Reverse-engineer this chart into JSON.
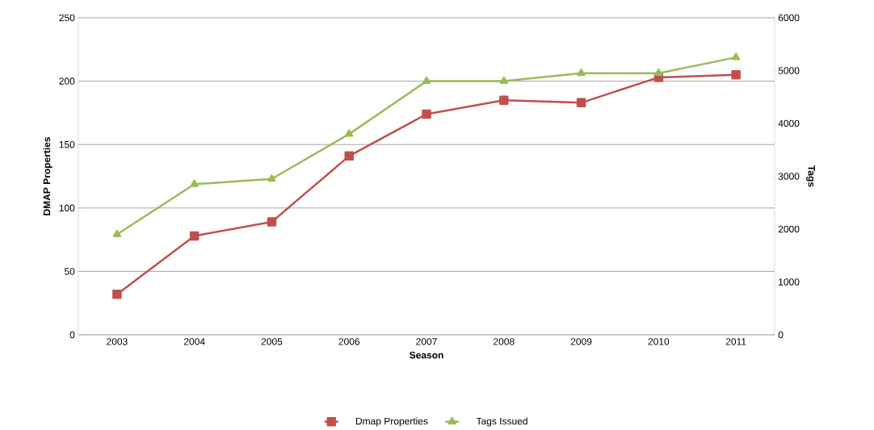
{
  "chart_data": {
    "type": "line",
    "xlabel": "Season",
    "ylabel": "DMAP Properties",
    "y2label": "Tags",
    "categories": [
      "2003",
      "2004",
      "2005",
      "2006",
      "2007",
      "2008",
      "2009",
      "2010",
      "2011"
    ],
    "series": [
      {
        "name": "Dmap Properties",
        "color": "#c0504d",
        "marker": "square",
        "values": [
          32,
          78,
          89,
          141,
          174,
          185,
          183,
          203,
          205
        ]
      },
      {
        "name": "Tags Issued",
        "color": "#9bbb59",
        "marker": "triangle",
        "axis": "y2",
        "values": [
          1900,
          2850,
          2950,
          3800,
          4800,
          4800,
          4950,
          4950,
          5250
        ]
      }
    ],
    "ylim": [
      0,
      250
    ],
    "yticks": [
      0,
      50,
      100,
      150,
      200,
      250
    ],
    "y2lim": [
      0,
      6000
    ],
    "y2ticks": [
      0,
      1000,
      2000,
      3000,
      4000,
      5000,
      6000
    ],
    "grid": "y",
    "legend": "bottom",
    "line_style": "solid"
  }
}
